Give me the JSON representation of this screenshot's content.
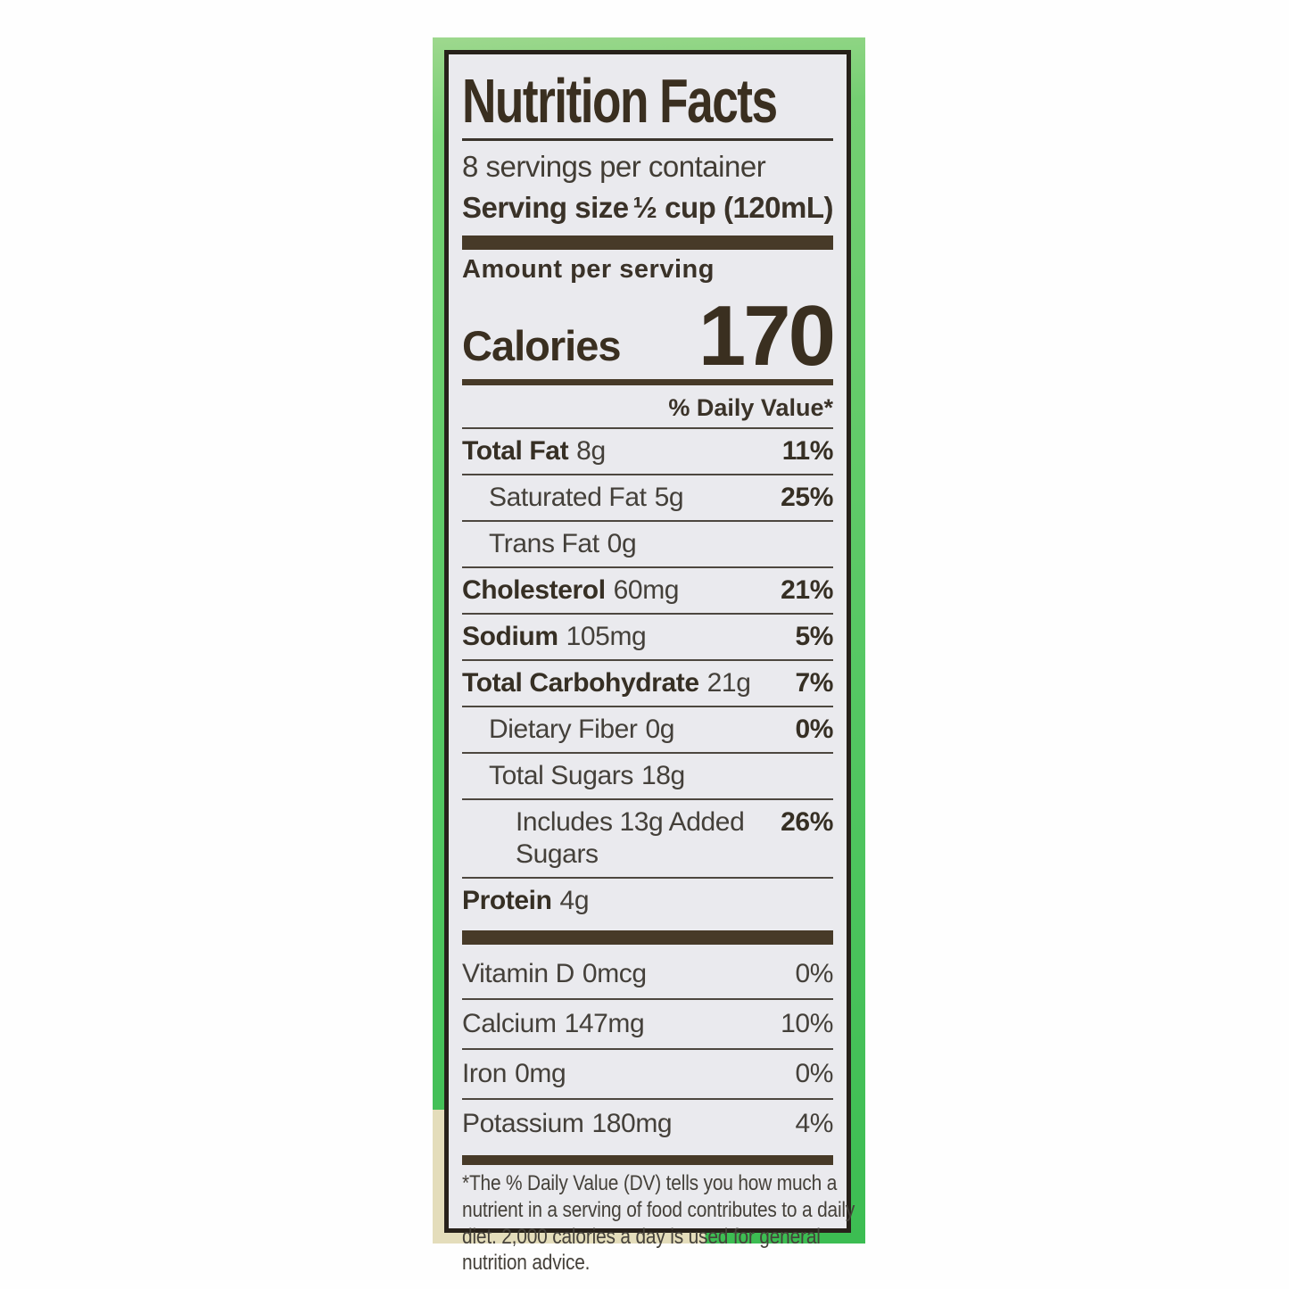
{
  "label": {
    "title": "Nutrition Facts",
    "servings_per_container": "8 servings per container",
    "serving_size_label": "Serving size",
    "serving_size_value": "½ cup (120mL)",
    "amount_per_serving": "Amount per serving",
    "calories_label": "Calories",
    "calories_value": "170",
    "daily_value_header": "% Daily Value*",
    "nutrients": [
      {
        "name": "Total Fat",
        "amount": "8g",
        "dv": "11%"
      },
      {
        "name": "Saturated Fat",
        "amount": "5g",
        "dv": "25%"
      },
      {
        "name": "Trans Fat",
        "amount": "0g",
        "dv": ""
      },
      {
        "name": "Cholesterol",
        "amount": "60mg",
        "dv": "21%"
      },
      {
        "name": "Sodium",
        "amount": "105mg",
        "dv": "5%"
      },
      {
        "name": "Total Carbohydrate",
        "amount": "21g",
        "dv": "7%"
      },
      {
        "name": "Dietary Fiber",
        "amount": "0g",
        "dv": "0%"
      },
      {
        "name": "Total Sugars",
        "amount": "18g",
        "dv": ""
      },
      {
        "name": "Includes 13g Added Sugars",
        "amount": "",
        "dv": "26%"
      },
      {
        "name": "Protein",
        "amount": "4g",
        "dv": ""
      }
    ],
    "vitamins": [
      {
        "name": "Vitamin D",
        "amount": "0mcg",
        "dv": "0%"
      },
      {
        "name": "Calcium",
        "amount": "147mg",
        "dv": "10%"
      },
      {
        "name": "Iron",
        "amount": "0mg",
        "dv": "0%"
      },
      {
        "name": "Potassium",
        "amount": "180mg",
        "dv": "4%"
      }
    ],
    "footnote": "*The % Daily Value (DV) tells you how much a nutrient in a serving of food contributes to a daily diet. 2,000 calories a day is used for general nutrition advice."
  },
  "colors": {
    "package_green": "#55c763",
    "package_green_light": "#9ed88e",
    "package_beige": "#e4ddbb",
    "label_background": "#eaeaee",
    "label_border": "#27211a",
    "text_dark_brown": "#3a2f20",
    "divider_bar": "#473a28"
  }
}
